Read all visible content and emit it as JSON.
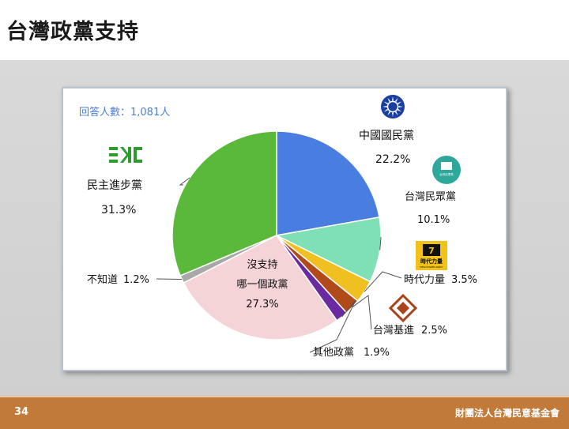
{
  "page": {
    "title": "台灣政黨支持",
    "page_number": "34",
    "organization": "財團法人台灣民意基金會"
  },
  "chart_data": {
    "type": "pie",
    "note": "回答人數：1,081人",
    "slices": [
      {
        "label": "中國國民黨",
        "value": 22.2,
        "value_label": "22.2%",
        "color": "#4a7de0"
      },
      {
        "label": "台灣民眾黨",
        "value": 10.1,
        "value_label": "10.1%",
        "color": "#7ee0b4"
      },
      {
        "label": "時代力量",
        "value": 3.5,
        "value_label": "3.5%",
        "color": "#f0c020"
      },
      {
        "label": "台灣基進",
        "value": 2.5,
        "value_label": "2.5%",
        "color": "#b04a1a"
      },
      {
        "label": "其他政黨",
        "value": 1.9,
        "value_label": "1.9%",
        "color": "#6a2aa0"
      },
      {
        "label": "沒支持哪一個政黨",
        "label_lines": [
          "沒支持",
          "哪一個政黨"
        ],
        "value": 27.3,
        "value_label": "27.3%",
        "color": "#f5d4d8"
      },
      {
        "label": "不知道",
        "value": 1.2,
        "value_label": "1.2%",
        "color": "#a8a8a8"
      },
      {
        "label": "民主進步黨",
        "value": 31.3,
        "value_label": "31.3%",
        "color": "#5ab83a"
      }
    ],
    "logos": {
      "kmt_icon": "blue-sky-white-sun-icon",
      "tpp_icon": "tpp-logo-icon",
      "tpp_logo_text": "台灣民眾黨",
      "npp_icon": "npp-logo-icon",
      "npp_logo_text": "時代力量",
      "npp_logo_subtext": "NEW POWER PARTY",
      "tsp_icon": "tsp-diamond-icon",
      "dpp_icon": "dpp-logo-icon"
    }
  }
}
